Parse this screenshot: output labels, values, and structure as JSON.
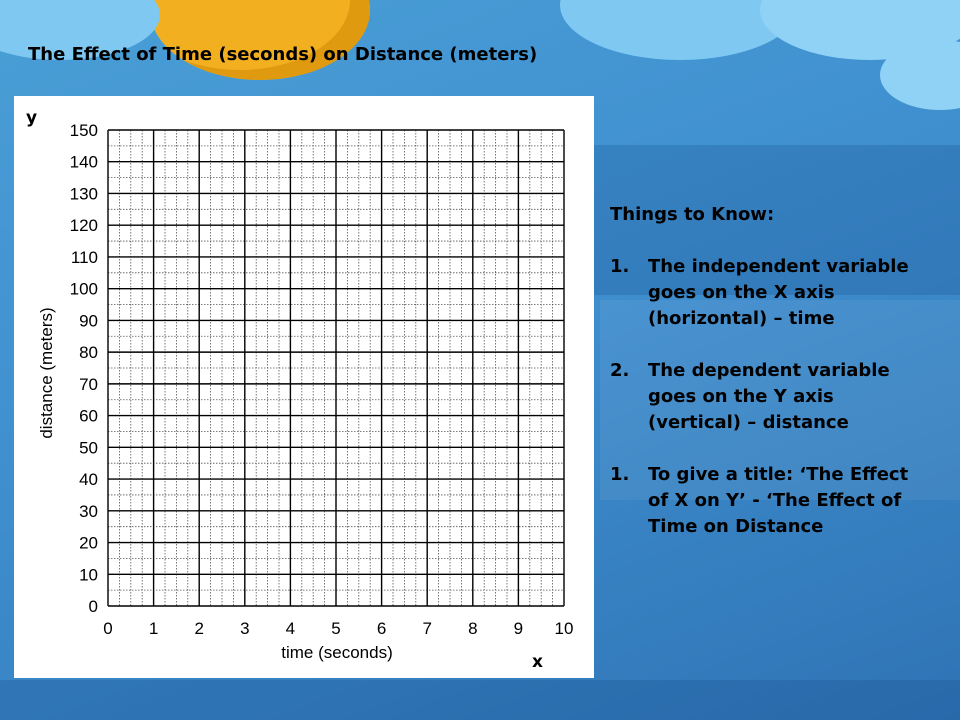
{
  "slide": {
    "title": "The Effect of Time (seconds) on Distance (meters)",
    "y_letter": "y",
    "x_letter": "x"
  },
  "notes": {
    "heading": "Things to Know:",
    "items": [
      {
        "num": "1.",
        "text": "The independent variable goes on the X axis (horizontal) – time"
      },
      {
        "num": "2.",
        "text": "The dependent variable goes on the Y axis (vertical) – distance"
      },
      {
        "num": "1.",
        "text": "To give a  title: ‘The Effect of X on Y’  - ‘The Effect of Time on Distance"
      }
    ]
  },
  "chart_data": {
    "type": "scatter",
    "title": "",
    "xlabel": "time (seconds)",
    "ylabel": "distance (meters)",
    "xlim": [
      0,
      10
    ],
    "ylim": [
      0,
      150
    ],
    "x_ticks": [
      0,
      1,
      2,
      3,
      4,
      5,
      6,
      7,
      8,
      9,
      10
    ],
    "y_ticks": [
      0,
      10,
      20,
      30,
      40,
      50,
      60,
      70,
      80,
      90,
      100,
      110,
      120,
      130,
      140,
      150
    ],
    "grid": true,
    "minor_grid": true,
    "series": []
  },
  "colors": {
    "grid_major": "#000000",
    "grid_minor": "#555555",
    "panel": "#ffffff"
  }
}
